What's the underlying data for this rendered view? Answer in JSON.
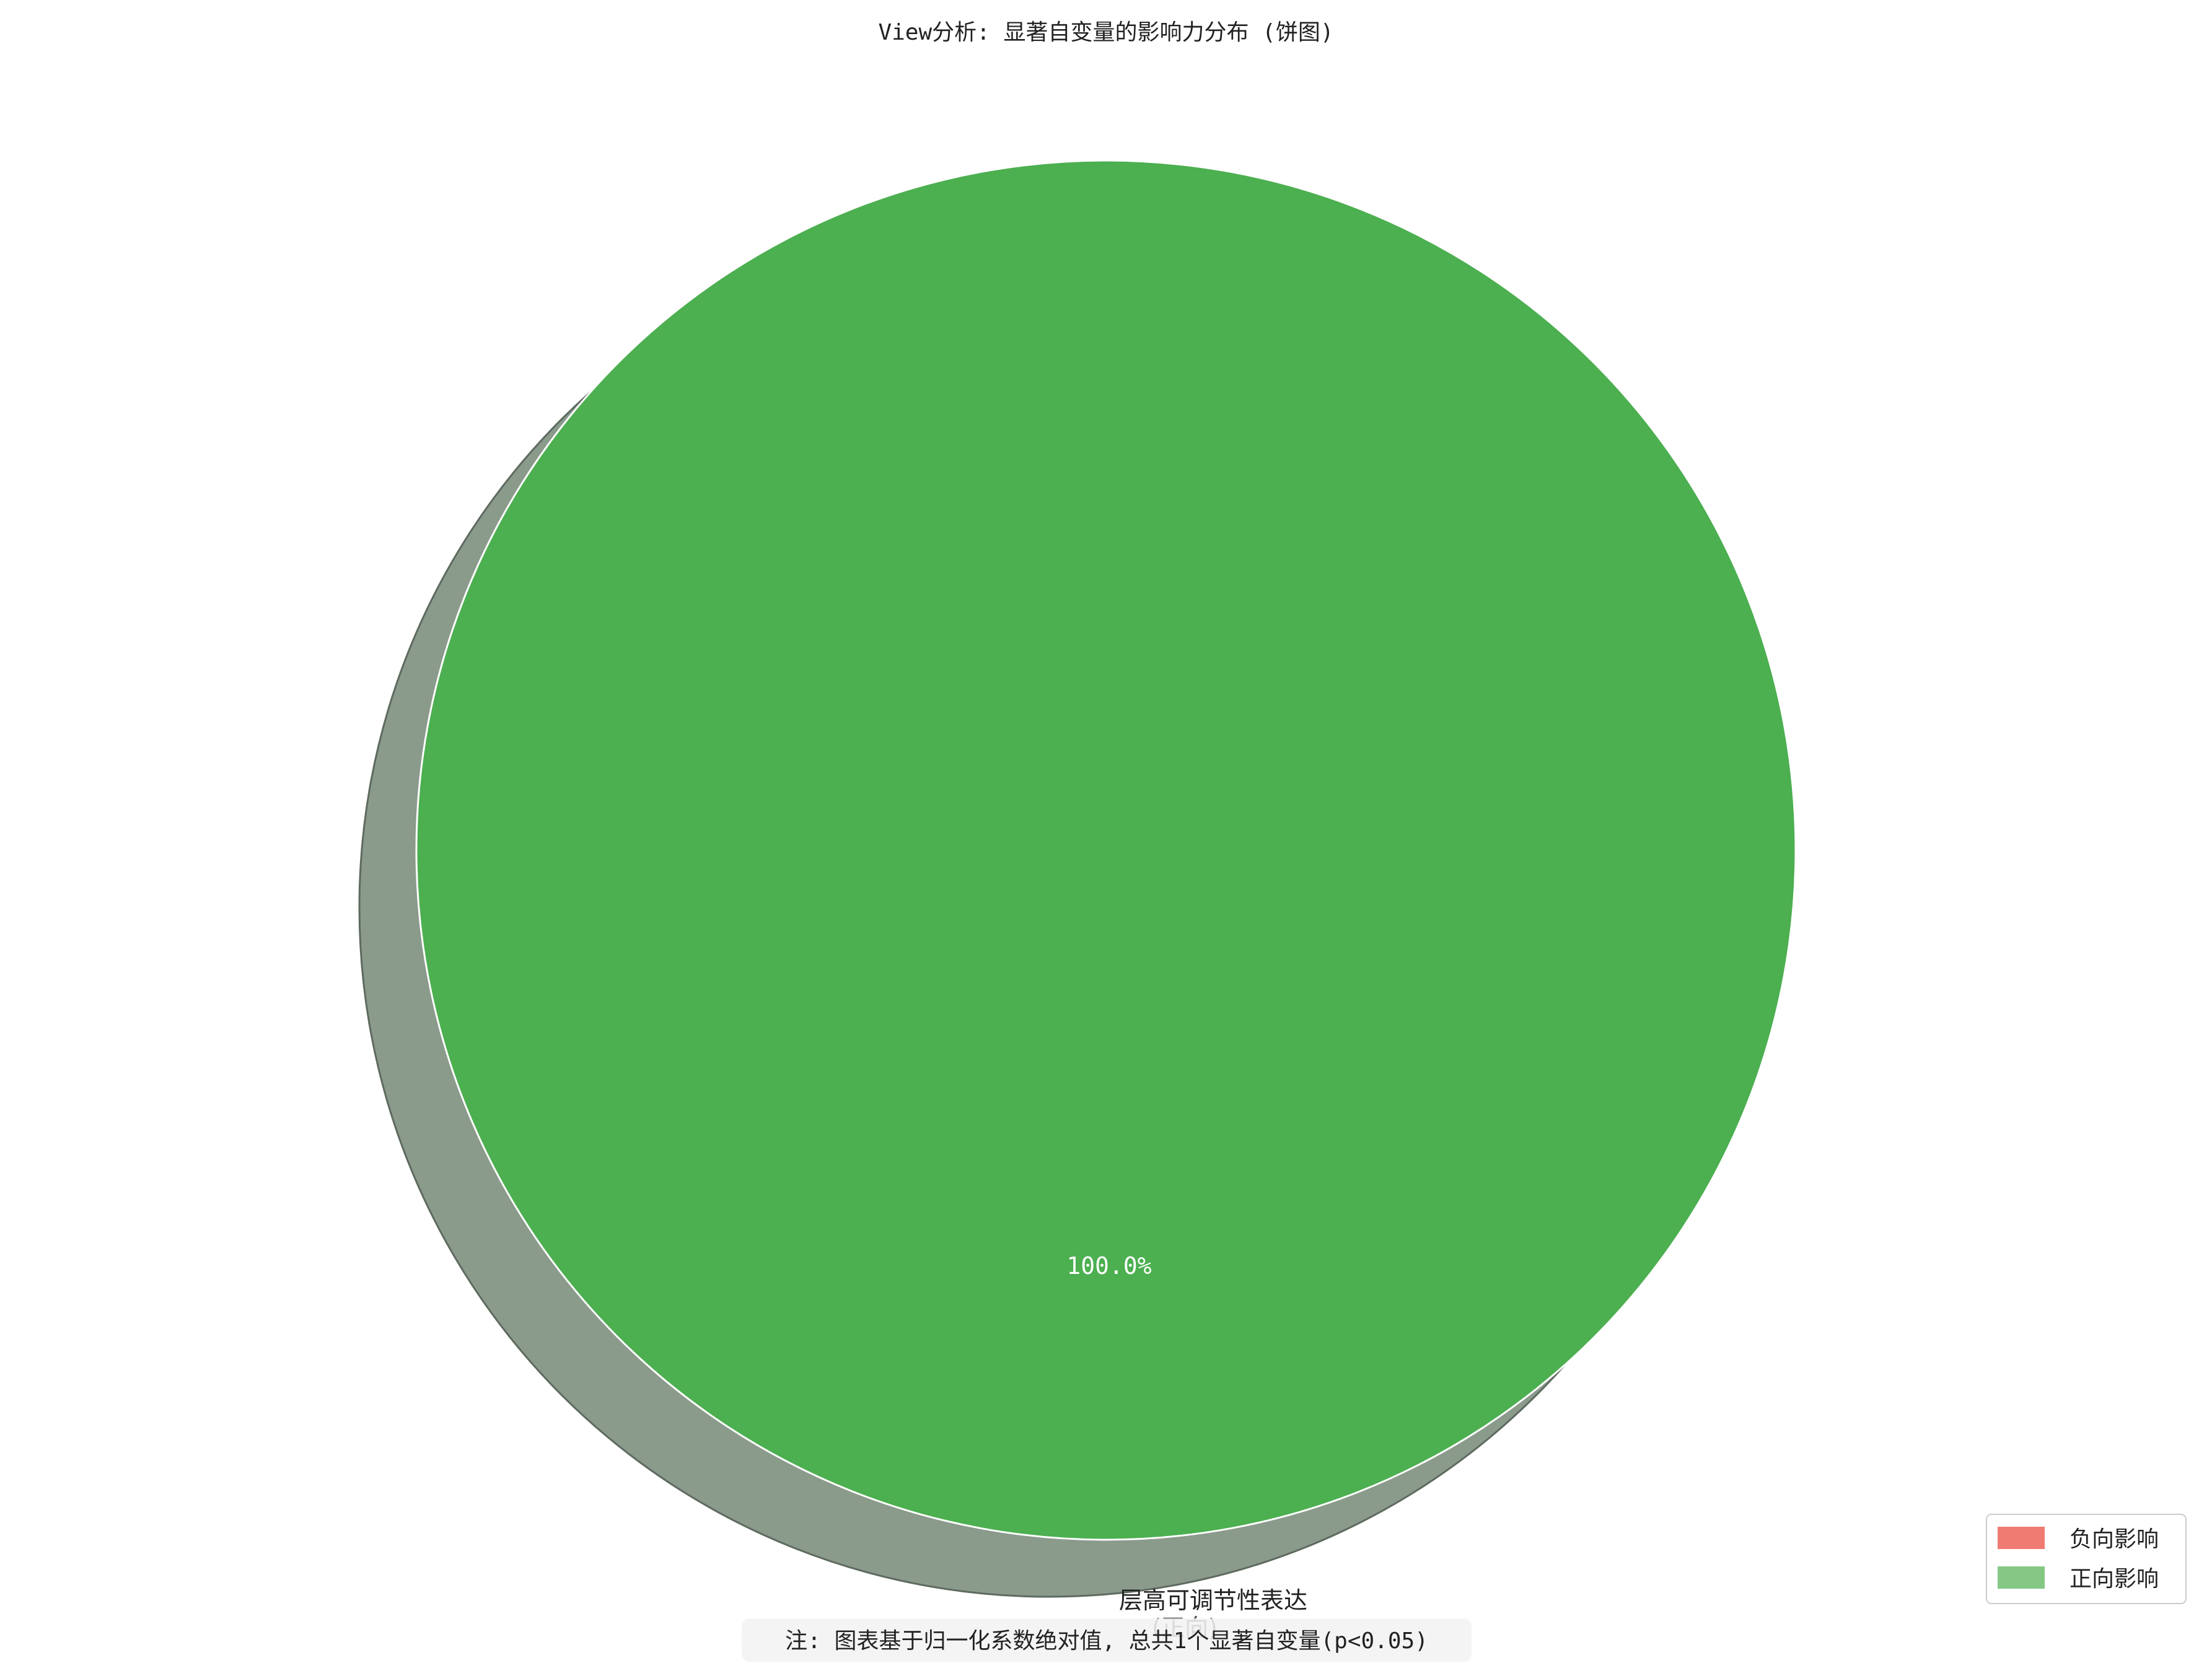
{
  "chart_data": {
    "type": "pie",
    "title": "View分析: 显著自变量的影响力分布 (饼图)",
    "slices": [
      {
        "label": "层高可调节性表达",
        "direction": "(正向)",
        "value": 100.0,
        "pct_label": "100.0%",
        "color": "#4caf50"
      }
    ],
    "legend": {
      "position": "lower-right",
      "items": [
        {
          "label": "负向影响",
          "color": "#ef7b72"
        },
        {
          "label": "正向影响",
          "color": "#85c785"
        }
      ]
    },
    "shadow": true,
    "shadow_color": "#8a9a8b",
    "note": "注: 图表基于归一化系数绝对值, 总共1个显著自变量(p<0.05)"
  }
}
